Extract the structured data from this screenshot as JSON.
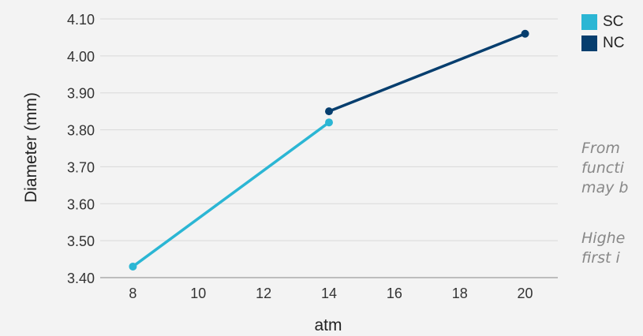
{
  "chart_data": {
    "type": "line",
    "xlabel": "atm",
    "ylabel": "Diameter (mm)",
    "xlim": [
      7,
      21
    ],
    "ylim": [
      3.4,
      4.1
    ],
    "x_ticks": [
      8,
      10,
      12,
      14,
      16,
      18,
      20
    ],
    "x_tick_labels": [
      "8",
      "10",
      "12",
      "14",
      "16",
      "18",
      "20"
    ],
    "y_ticks": [
      3.4,
      3.5,
      3.6,
      3.7,
      3.8,
      3.9,
      4.0,
      4.1
    ],
    "y_tick_labels": [
      "3.40",
      "3.50",
      "3.60",
      "3.70",
      "3.80",
      "3.90",
      "4.00",
      "4.10"
    ],
    "grid": true,
    "legend_position": "top-right",
    "series": [
      {
        "name": "SC",
        "color": "#2bb6d4",
        "points": [
          {
            "x": 8,
            "y": 3.43
          },
          {
            "x": 14,
            "y": 3.82
          }
        ]
      },
      {
        "name": "NC",
        "color": "#063e6e",
        "points": [
          {
            "x": 14,
            "y": 3.85
          },
          {
            "x": 20,
            "y": 4.06
          }
        ]
      }
    ]
  },
  "notes": [
    {
      "lines": [
        "From",
        "functi",
        "may b"
      ]
    },
    {
      "lines": [
        "Highe",
        "first i"
      ]
    }
  ]
}
